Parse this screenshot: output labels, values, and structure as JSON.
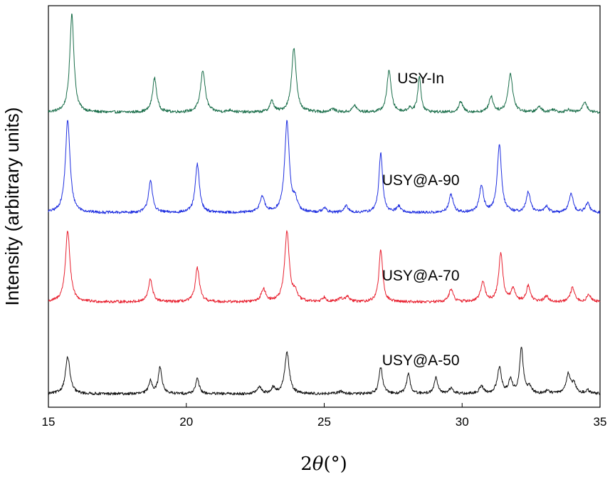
{
  "chart_data": {
    "type": "line",
    "xlabel": "2θ(°)",
    "xlabel_parts": {
      "prefix": "2",
      "symbol": "θ",
      "unit": "(°)"
    },
    "ylabel": "Intensity (arbitrary units)",
    "xlim": [
      15,
      35
    ],
    "ylim": [
      0,
      100
    ],
    "xticks": [
      15,
      20,
      25,
      30,
      35
    ],
    "xtick_labels": [
      "15",
      "20",
      "25",
      "30",
      "35"
    ],
    "y_ticks_shown": false,
    "grid": false,
    "legend": "inline labels",
    "series": [
      {
        "name": "USY-In",
        "color": "#1a6e4a",
        "baseline": 73.4,
        "noise": 0.35,
        "peaks": [
          [
            15.85,
            24.6,
            0.09
          ],
          [
            18.85,
            8.5,
            0.09
          ],
          [
            20.6,
            10.5,
            0.1
          ],
          [
            21.6,
            0.5,
            0.12
          ],
          [
            23.1,
            2.7,
            0.09
          ],
          [
            23.9,
            15.9,
            0.1
          ],
          [
            25.3,
            0.8,
            0.12
          ],
          [
            26.1,
            1.7,
            0.09
          ],
          [
            27.35,
            10.6,
            0.09
          ],
          [
            28.1,
            1.0,
            0.08
          ],
          [
            28.45,
            8.8,
            0.07
          ],
          [
            29.95,
            2.6,
            0.09
          ],
          [
            31.05,
            3.9,
            0.09
          ],
          [
            31.75,
            9.6,
            0.1
          ],
          [
            32.8,
            1.4,
            0.09
          ],
          [
            33.3,
            0.7,
            0.1
          ],
          [
            33.85,
            0.7,
            0.1
          ],
          [
            34.45,
            2.7,
            0.09
          ]
        ]
      },
      {
        "name": "USY@A-90",
        "color": "#1f2fe0",
        "baseline": 48.4,
        "noise": 0.35,
        "peaks": [
          [
            15.7,
            23.1,
            0.1
          ],
          [
            18.7,
            7.9,
            0.09
          ],
          [
            20.4,
            12.1,
            0.09
          ],
          [
            22.75,
            4.0,
            0.1
          ],
          [
            23.65,
            22.7,
            0.1
          ],
          [
            23.95,
            2.8,
            0.08
          ],
          [
            25.0,
            1.1,
            0.09
          ],
          [
            25.8,
            1.6,
            0.09
          ],
          [
            27.05,
            14.7,
            0.08
          ],
          [
            27.7,
            1.6,
            0.09
          ],
          [
            29.6,
            4.6,
            0.09
          ],
          [
            30.7,
            6.7,
            0.09
          ],
          [
            31.35,
            17.1,
            0.09
          ],
          [
            32.4,
            5.1,
            0.09
          ],
          [
            33.05,
            1.6,
            0.09
          ],
          [
            33.95,
            4.9,
            0.09
          ],
          [
            34.55,
            2.4,
            0.09
          ]
        ]
      },
      {
        "name": "USY@A-70",
        "color": "#e8202f",
        "baseline": 26.2,
        "noise": 0.35,
        "peaks": [
          [
            15.7,
            17.7,
            0.1
          ],
          [
            18.7,
            5.6,
            0.09
          ],
          [
            20.4,
            8.5,
            0.09
          ],
          [
            22.8,
            3.1,
            0.1
          ],
          [
            23.65,
            17.5,
            0.1
          ],
          [
            23.95,
            2.2,
            0.08
          ],
          [
            25.0,
            1.1,
            0.09
          ],
          [
            25.6,
            0.9,
            0.09
          ],
          [
            25.85,
            1.2,
            0.09
          ],
          [
            27.05,
            13.1,
            0.08
          ],
          [
            29.6,
            3.2,
            0.09
          ],
          [
            30.75,
            5.1,
            0.09
          ],
          [
            31.4,
            12.0,
            0.09
          ],
          [
            31.85,
            3.2,
            0.09
          ],
          [
            32.4,
            3.9,
            0.09
          ],
          [
            33.05,
            1.4,
            0.09
          ],
          [
            34.0,
            3.5,
            0.09
          ],
          [
            34.6,
            1.8,
            0.09
          ]
        ]
      },
      {
        "name": "USY@A-50",
        "color": "#111111",
        "baseline": 3.3,
        "noise": 0.35,
        "peaks": [
          [
            15.7,
            9.2,
            0.1
          ],
          [
            18.7,
            3.2,
            0.08
          ],
          [
            19.05,
            6.6,
            0.08
          ],
          [
            20.4,
            3.7,
            0.08
          ],
          [
            22.65,
            1.6,
            0.1
          ],
          [
            23.15,
            1.4,
            0.08
          ],
          [
            23.65,
            10.3,
            0.1
          ],
          [
            25.6,
            0.6,
            0.12
          ],
          [
            27.05,
            6.6,
            0.08
          ],
          [
            28.05,
            4.9,
            0.08
          ],
          [
            29.05,
            4.0,
            0.08
          ],
          [
            29.6,
            1.4,
            0.09
          ],
          [
            30.7,
            1.9,
            0.09
          ],
          [
            31.35,
            6.5,
            0.09
          ],
          [
            31.75,
            3.4,
            0.08
          ],
          [
            32.15,
            11.2,
            0.08
          ],
          [
            32.45,
            1.6,
            0.08
          ],
          [
            33.1,
            0.7,
            0.1
          ],
          [
            33.85,
            5.0,
            0.09
          ],
          [
            34.05,
            2.3,
            0.09
          ],
          [
            34.55,
            0.9,
            0.09
          ]
        ]
      }
    ]
  },
  "series_labels": [
    {
      "text": "USY-In",
      "x": 28.5,
      "y": 80.7
    },
    {
      "text": "USY@A-90",
      "x": 28.5,
      "y": 55.3
    },
    {
      "text": "USY@A-70",
      "x": 28.5,
      "y": 31.6
    },
    {
      "text": "USY@A-50",
      "x": 28.5,
      "y": 10.5
    }
  ]
}
